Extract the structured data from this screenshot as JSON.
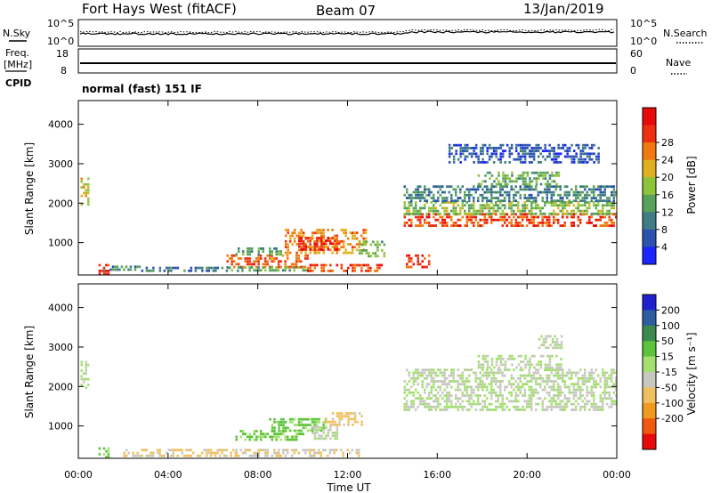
{
  "header": {
    "site_title": "Fort Hays West (fitACF)",
    "beam": "Beam 07",
    "date": "13/Jan/2019"
  },
  "strips": {
    "nsky_label": "N.Sky",
    "nsearch_label": "N.Search",
    "freq_label_line1": "Freq.",
    "freq_label_line2": "[MHz]",
    "nave_label": "Nave",
    "cpid_label": "CPID",
    "noise_left_ticks": [
      "10^5",
      "10^0"
    ],
    "noise_right_ticks": [
      "10^5",
      "10^0"
    ],
    "freq_left_ticks": [
      "18",
      "8"
    ],
    "freq_right_ticks": [
      "60",
      "0"
    ],
    "cpid_text": "normal (fast) 151 IF"
  },
  "chart_data": [
    {
      "type": "heatmap",
      "panel": "power",
      "ylabel": "Slant Range [km]",
      "xlabel": "",
      "x_ticks": [
        "00:00",
        "04:00",
        "08:00",
        "12:00",
        "16:00",
        "20:00",
        "00:00"
      ],
      "x_range_hours": [
        0,
        24
      ],
      "y_ticks": [
        1000,
        2000,
        3000,
        4000
      ],
      "ylim": [
        180,
        4600
      ],
      "colorbar": {
        "label": "Power [dB]",
        "ticks": [
          "4",
          "8",
          "12",
          "16",
          "20",
          "24",
          "28"
        ],
        "colors": [
          "#1a24ff",
          "#2c52b0",
          "#3e7d83",
          "#58a15a",
          "#8cc43a",
          "#e0b020",
          "#f07a10",
          "#ee3010",
          "#e80a0a"
        ],
        "range": [
          0,
          32
        ]
      },
      "regions": [
        {
          "t0": 0.1,
          "t1": 0.4,
          "r0": 1980,
          "r1": 2650,
          "value": 18
        },
        {
          "t0": 0.9,
          "t1": 1.3,
          "r0": 240,
          "r1": 460,
          "value": 28
        },
        {
          "t0": 1.1,
          "t1": 2.8,
          "r0": 300,
          "r1": 420,
          "value": 10
        },
        {
          "t0": 2.8,
          "t1": 7.5,
          "r0": 280,
          "r1": 390,
          "value": 9
        },
        {
          "t0": 6.6,
          "t1": 10.2,
          "r0": 400,
          "r1": 700,
          "value": 25
        },
        {
          "t0": 6.6,
          "t1": 10.2,
          "r0": 300,
          "r1": 400,
          "value": 13
        },
        {
          "t0": 10.2,
          "t1": 13.5,
          "r0": 280,
          "r1": 460,
          "value": 26
        },
        {
          "t0": 7.0,
          "t1": 9.0,
          "r0": 680,
          "r1": 880,
          "value": 12
        },
        {
          "t0": 9.2,
          "t1": 12.8,
          "r0": 750,
          "r1": 1350,
          "value": 22
        },
        {
          "t0": 9.8,
          "t1": 11.6,
          "r0": 850,
          "r1": 1150,
          "value": 28
        },
        {
          "t0": 12.5,
          "t1": 13.6,
          "r0": 680,
          "r1": 1050,
          "value": 14
        },
        {
          "t0": 14.6,
          "t1": 15.6,
          "r0": 400,
          "r1": 700,
          "value": 27
        },
        {
          "t0": 14.5,
          "t1": 24.0,
          "r0": 1400,
          "r1": 1750,
          "value": 26
        },
        {
          "t0": 14.5,
          "t1": 24.0,
          "r0": 1750,
          "r1": 2050,
          "value": 15
        },
        {
          "t0": 14.5,
          "t1": 24.0,
          "r0": 2050,
          "r1": 2450,
          "value": 9
        },
        {
          "t0": 17.8,
          "t1": 21.5,
          "r0": 2500,
          "r1": 2800,
          "value": 13
        },
        {
          "t0": 16.5,
          "t1": 23.2,
          "r0": 3000,
          "r1": 3500,
          "value": 6
        }
      ]
    },
    {
      "type": "heatmap",
      "panel": "velocity",
      "ylabel": "Slant Range [km]",
      "xlabel": "Time UT",
      "x_ticks": [
        "00:00",
        "04:00",
        "08:00",
        "12:00",
        "16:00",
        "20:00",
        "00:00"
      ],
      "x_range_hours": [
        0,
        24
      ],
      "y_ticks": [
        1000,
        2000,
        3000,
        4000
      ],
      "ylim": [
        180,
        4600
      ],
      "colorbar": {
        "label": "Velocity [m s⁻¹]",
        "ticks": [
          "200",
          "100",
          "50",
          "15",
          "-15",
          "-50",
          "-100",
          "-200"
        ],
        "colors": [
          "#2020d0",
          "#2c5ea0",
          "#3c8a50",
          "#5cc43a",
          "#a4e070",
          "#c8c8c0",
          "#f0c060",
          "#f09a20",
          "#f05a10",
          "#e80a0a"
        ],
        "range": [
          -250,
          250
        ]
      },
      "regions": [
        {
          "t0": 0.1,
          "t1": 0.4,
          "r0": 1980,
          "r1": 2650,
          "value": 0
        },
        {
          "t0": 0.9,
          "t1": 1.3,
          "r0": 240,
          "r1": 460,
          "value": 60
        },
        {
          "t0": 2.0,
          "t1": 7.0,
          "r0": 260,
          "r1": 420,
          "value": -60
        },
        {
          "t0": 7.0,
          "t1": 12.5,
          "r0": 260,
          "r1": 420,
          "value": -40
        },
        {
          "t0": 7.0,
          "t1": 10.0,
          "r0": 650,
          "r1": 900,
          "value": 60
        },
        {
          "t0": 8.5,
          "t1": 11.0,
          "r0": 900,
          "r1": 1200,
          "value": 60
        },
        {
          "t0": 11.0,
          "t1": 12.6,
          "r0": 1050,
          "r1": 1350,
          "value": -70
        },
        {
          "t0": 10.3,
          "t1": 11.5,
          "r0": 700,
          "r1": 1000,
          "value": 0
        },
        {
          "t0": 14.5,
          "t1": 24.0,
          "r0": 1400,
          "r1": 2450,
          "value": 0
        },
        {
          "t0": 17.8,
          "t1": 21.5,
          "r0": 2500,
          "r1": 2800,
          "value": 0
        },
        {
          "t0": 20.5,
          "t1": 21.5,
          "r0": 3000,
          "r1": 3300,
          "value": 0
        }
      ]
    }
  ]
}
